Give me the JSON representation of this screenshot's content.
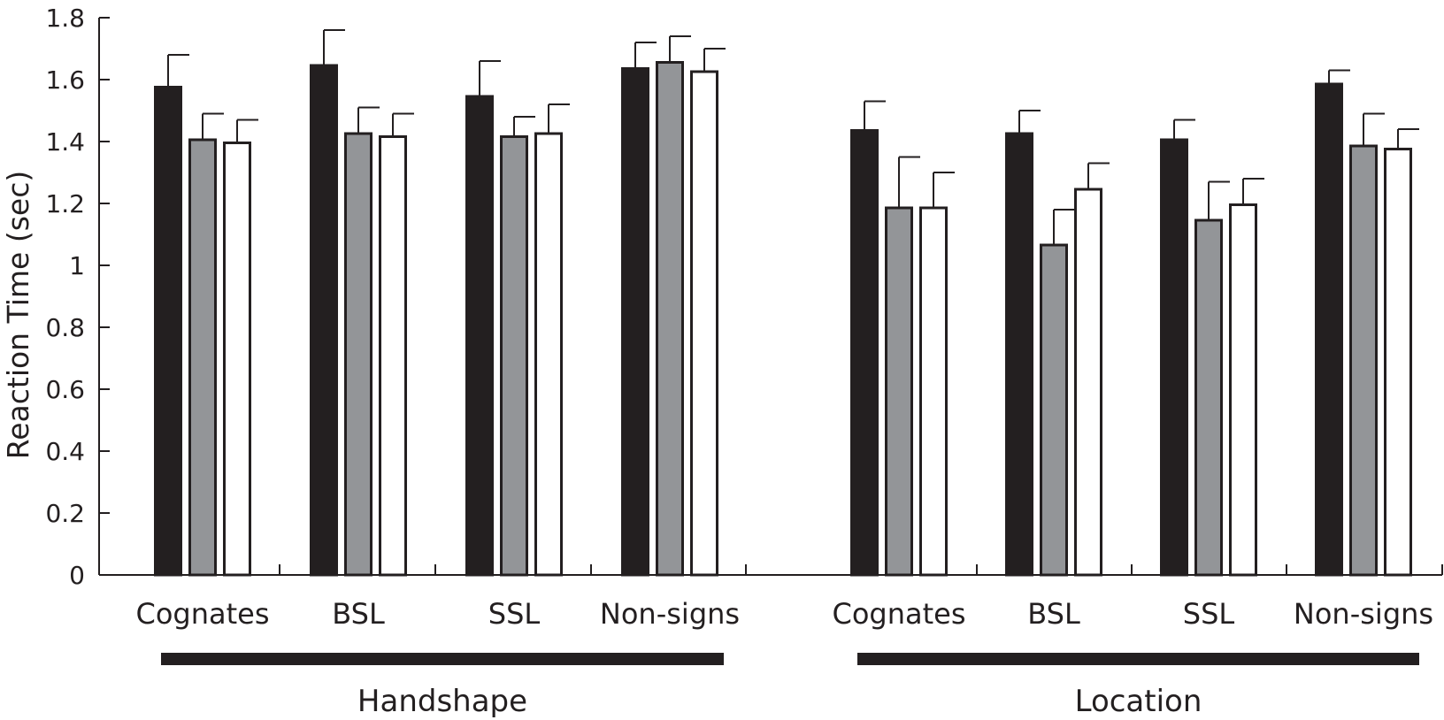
{
  "chart_data": {
    "type": "bar",
    "title": "",
    "xlabel": "",
    "ylabel": "Reaction Time (sec)",
    "ylim": [
      0,
      1.8
    ],
    "yticks": [
      "0",
      "0.2",
      "0.4",
      "0.6",
      "0.8",
      "1",
      "1.2",
      "1.4",
      "1.6",
      "1.8"
    ],
    "legend": "none",
    "grid": false,
    "series_colors": [
      "#231f20",
      "#939598",
      "#ffffff"
    ],
    "groups": [
      {
        "label": "Handshape",
        "categories": [
          {
            "label": "Cognates",
            "values": [
              1.58,
              1.41,
              1.4
            ],
            "errors": [
              0.1,
              0.08,
              0.07
            ]
          },
          {
            "label": "BSL",
            "values": [
              1.65,
              1.43,
              1.42
            ],
            "errors": [
              0.11,
              0.08,
              0.07
            ]
          },
          {
            "label": "SSL",
            "values": [
              1.55,
              1.42,
              1.43
            ],
            "errors": [
              0.11,
              0.06,
              0.09
            ]
          },
          {
            "label": "Non-signs",
            "values": [
              1.64,
              1.66,
              1.63
            ],
            "errors": [
              0.08,
              0.08,
              0.07
            ]
          }
        ]
      },
      {
        "label": "Location",
        "categories": [
          {
            "label": "Cognates",
            "values": [
              1.44,
              1.19,
              1.19
            ],
            "errors": [
              0.09,
              0.16,
              0.11
            ]
          },
          {
            "label": "BSL",
            "values": [
              1.43,
              1.07,
              1.25
            ],
            "errors": [
              0.07,
              0.11,
              0.08
            ]
          },
          {
            "label": "SSL",
            "values": [
              1.41,
              1.15,
              1.2
            ],
            "errors": [
              0.06,
              0.12,
              0.08
            ]
          },
          {
            "label": "Non-signs",
            "values": [
              1.59,
              1.39,
              1.38
            ],
            "errors": [
              0.04,
              0.1,
              0.06
            ]
          }
        ]
      }
    ]
  }
}
